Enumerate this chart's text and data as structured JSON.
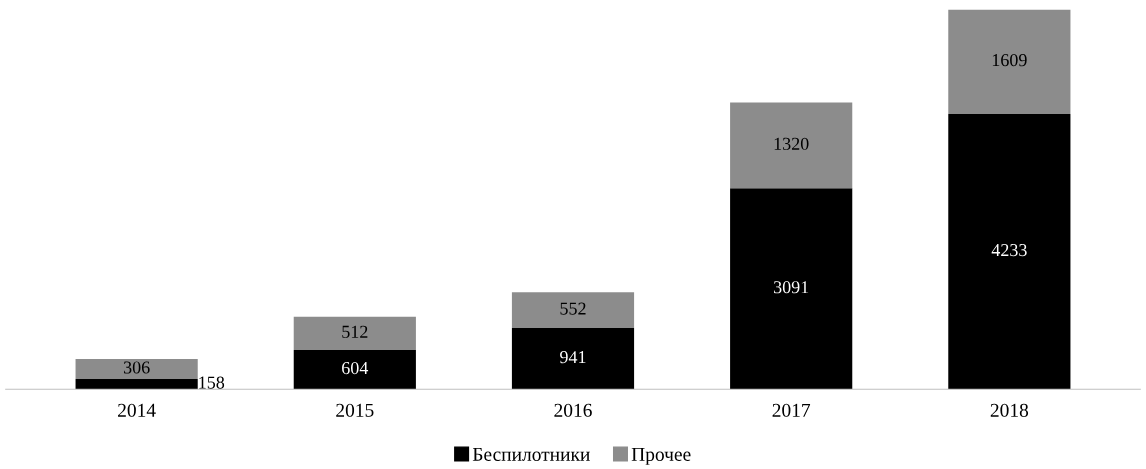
{
  "chart_data": {
    "type": "bar",
    "stacked": true,
    "data_labels": true,
    "legend": "bottom",
    "grid": false,
    "categories": [
      "2014",
      "2015",
      "2016",
      "2017",
      "2018"
    ],
    "series": [
      {
        "name": "Беспилотники",
        "color": "#000000",
        "values": [
          158,
          604,
          941,
          3091,
          4233
        ]
      },
      {
        "name": "Прочее",
        "color": "#8c8c8c",
        "values": [
          306,
          512,
          552,
          1320,
          1609
        ]
      }
    ]
  }
}
